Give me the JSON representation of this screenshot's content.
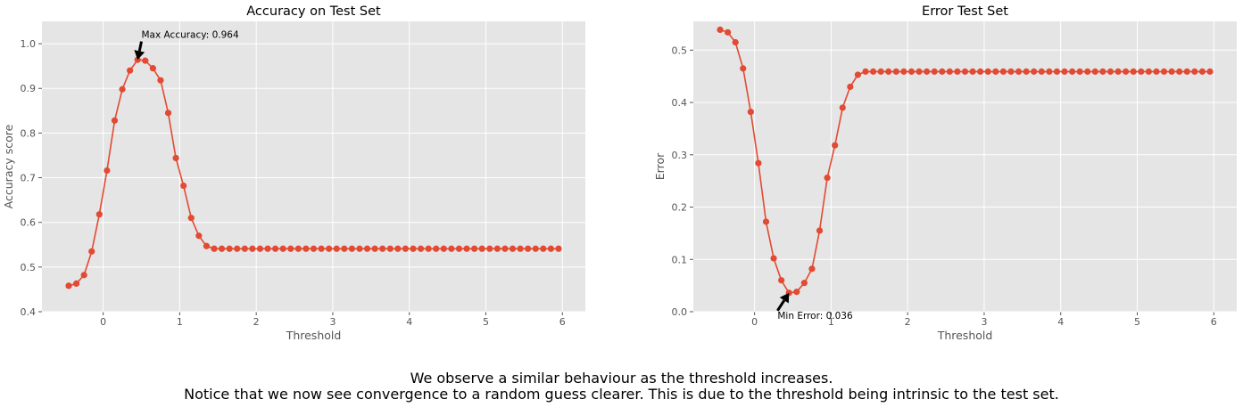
{
  "chart_data": [
    {
      "type": "line",
      "title": "Accuracy on Test Set",
      "xlabel": "Threshold",
      "ylabel": "Accuracy score",
      "xlim": [
        -0.8,
        6.3
      ],
      "ylim": [
        0.4,
        1.05
      ],
      "xticks": [
        "0",
        "1",
        "2",
        "3",
        "4",
        "5",
        "6"
      ],
      "yticks": [
        "0.4",
        "0.5",
        "0.6",
        "0.7",
        "0.8",
        "0.9",
        "1.0"
      ],
      "grid": true,
      "style": {
        "background": "#e5e5e5",
        "line_color": "#e24a33",
        "marker": "circle"
      },
      "x": [
        -0.45,
        -0.35,
        -0.25,
        -0.15,
        -0.05,
        0.05,
        0.15,
        0.25,
        0.35,
        0.45,
        0.55,
        0.65,
        0.75,
        0.85,
        0.95,
        1.05,
        1.15,
        1.25,
        1.35,
        1.45,
        1.55,
        1.65,
        1.75,
        1.85,
        1.95,
        2.05,
        2.15,
        2.25,
        2.35,
        2.45,
        2.55,
        2.65,
        2.75,
        2.85,
        2.95,
        3.05,
        3.15,
        3.25,
        3.35,
        3.45,
        3.55,
        3.65,
        3.75,
        3.85,
        3.95,
        4.05,
        4.15,
        4.25,
        4.35,
        4.45,
        4.55,
        4.65,
        4.75,
        4.85,
        4.95,
        5.05,
        5.15,
        5.25,
        5.35,
        5.45,
        5.55,
        5.65,
        5.75,
        5.85,
        5.95
      ],
      "y": [
        0.458,
        0.463,
        0.482,
        0.535,
        0.618,
        0.716,
        0.828,
        0.898,
        0.94,
        0.964,
        0.962,
        0.945,
        0.918,
        0.845,
        0.744,
        0.682,
        0.61,
        0.57,
        0.547,
        0.541,
        0.541,
        0.541,
        0.541,
        0.541,
        0.541,
        0.541,
        0.541,
        0.541,
        0.541,
        0.541,
        0.541,
        0.541,
        0.541,
        0.541,
        0.541,
        0.541,
        0.541,
        0.541,
        0.541,
        0.541,
        0.541,
        0.541,
        0.541,
        0.541,
        0.541,
        0.541,
        0.541,
        0.541,
        0.541,
        0.541,
        0.541,
        0.541,
        0.541,
        0.541,
        0.541,
        0.541,
        0.541,
        0.541,
        0.541,
        0.541,
        0.541,
        0.541,
        0.541,
        0.541,
        0.541
      ],
      "annotation": {
        "text": "Max Accuracy: 0.964",
        "point": [
          0.45,
          0.964
        ],
        "text_at": [
          0.5,
          1.005
        ]
      }
    },
    {
      "type": "line",
      "title": "Error Test Set",
      "xlabel": "Threshold",
      "ylabel": "Error",
      "xlim": [
        -0.8,
        6.3
      ],
      "ylim": [
        0.0,
        0.555
      ],
      "xticks": [
        "0",
        "1",
        "2",
        "3",
        "4",
        "5",
        "6"
      ],
      "yticks": [
        "0.0",
        "0.1",
        "0.2",
        "0.3",
        "0.4",
        "0.5"
      ],
      "grid": true,
      "style": {
        "background": "#e5e5e5",
        "line_color": "#e24a33",
        "marker": "circle"
      },
      "x": [
        -0.45,
        -0.35,
        -0.25,
        -0.15,
        -0.05,
        0.05,
        0.15,
        0.25,
        0.35,
        0.45,
        0.55,
        0.65,
        0.75,
        0.85,
        0.95,
        1.05,
        1.15,
        1.25,
        1.35,
        1.45,
        1.55,
        1.65,
        1.75,
        1.85,
        1.95,
        2.05,
        2.15,
        2.25,
        2.35,
        2.45,
        2.55,
        2.65,
        2.75,
        2.85,
        2.95,
        3.05,
        3.15,
        3.25,
        3.35,
        3.45,
        3.55,
        3.65,
        3.75,
        3.85,
        3.95,
        4.05,
        4.15,
        4.25,
        4.35,
        4.45,
        4.55,
        4.65,
        4.75,
        4.85,
        4.95,
        5.05,
        5.15,
        5.25,
        5.35,
        5.45,
        5.55,
        5.65,
        5.75,
        5.85,
        5.95
      ],
      "y": [
        0.539,
        0.534,
        0.515,
        0.465,
        0.382,
        0.284,
        0.172,
        0.102,
        0.06,
        0.036,
        0.038,
        0.055,
        0.082,
        0.155,
        0.256,
        0.318,
        0.39,
        0.43,
        0.453,
        0.459,
        0.459,
        0.459,
        0.459,
        0.459,
        0.459,
        0.459,
        0.459,
        0.459,
        0.459,
        0.459,
        0.459,
        0.459,
        0.459,
        0.459,
        0.459,
        0.459,
        0.459,
        0.459,
        0.459,
        0.459,
        0.459,
        0.459,
        0.459,
        0.459,
        0.459,
        0.459,
        0.459,
        0.459,
        0.459,
        0.459,
        0.459,
        0.459,
        0.459,
        0.459,
        0.459,
        0.459,
        0.459,
        0.459,
        0.459,
        0.459,
        0.459,
        0.459,
        0.459,
        0.459,
        0.459
      ],
      "annotation": {
        "text": "Min Error: 0.036",
        "point": [
          0.45,
          0.036
        ],
        "text_at": [
          0.3,
          0.002
        ]
      }
    }
  ],
  "caption": {
    "line1": "We observe a similar behaviour as the threshold increases.",
    "line2": "Notice that we now see convergence to a random guess clearer. This is due to the threshold being intrinsic to the test set."
  }
}
